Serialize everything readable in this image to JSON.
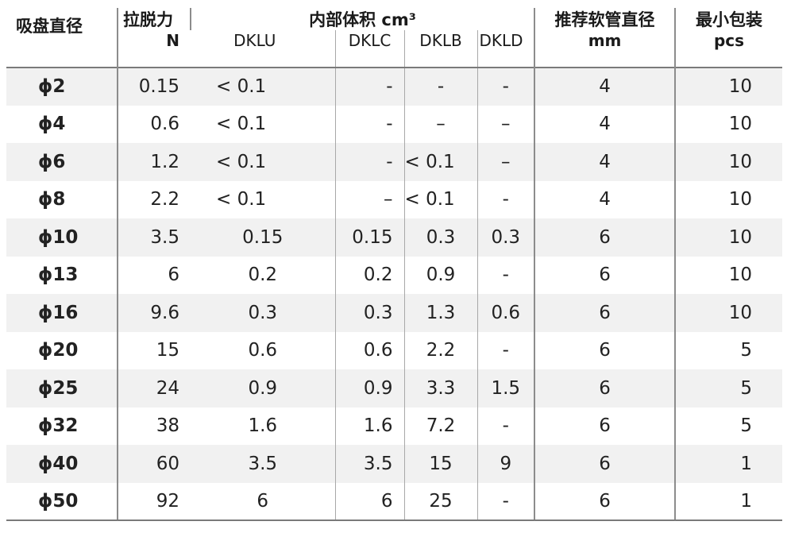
{
  "header": {
    "size": "吸盘直径",
    "force": "拉脱力",
    "force_unit": "N",
    "volume": "内部体积 cm³",
    "dklu": "DKLU",
    "dklc": "DKLC",
    "dklb": "DKLB",
    "dkld": "DKLD",
    "hose": "推荐软管直径",
    "hose_unit": "mm",
    "pack": "最小包装",
    "pack_unit": "pcs"
  },
  "rows": [
    {
      "size": "ϕ2",
      "force": "0.15",
      "dklu": "< 0.1",
      "dklc": "-",
      "dklb": "-",
      "dkld": "-",
      "hose": "4",
      "pack": "10"
    },
    {
      "size": "ϕ4",
      "force": "0.6",
      "dklu": "< 0.1",
      "dklc": "-",
      "dklb": "–",
      "dkld": "–",
      "hose": "4",
      "pack": "10"
    },
    {
      "size": "ϕ6",
      "force": "1.2",
      "dklu": "< 0.1",
      "dklc": "-",
      "dklb": "< 0.1",
      "dkld": "–",
      "hose": "4",
      "pack": "10"
    },
    {
      "size": "ϕ8",
      "force": "2.2",
      "dklu": "< 0.1",
      "dklc": "–",
      "dklb": "< 0.1",
      "dkld": "-",
      "hose": "4",
      "pack": "10"
    },
    {
      "size": "ϕ10",
      "force": "3.5",
      "dklu": "0.15",
      "dklc": "0.15",
      "dklb": "0.3",
      "dkld": "0.3",
      "hose": "6",
      "pack": "10"
    },
    {
      "size": "ϕ13",
      "force": "6",
      "dklu": "0.2",
      "dklc": "0.2",
      "dklb": "0.9",
      "dkld": "-",
      "hose": "6",
      "pack": "10"
    },
    {
      "size": "ϕ16",
      "force": "9.6",
      "dklu": "0.3",
      "dklc": "0.3",
      "dklb": "1.3",
      "dkld": "0.6",
      "hose": "6",
      "pack": "10"
    },
    {
      "size": "ϕ20",
      "force": "15",
      "dklu": "0.6",
      "dklc": "0.6",
      "dklb": "2.2",
      "dkld": "-",
      "hose": "6",
      "pack": "5"
    },
    {
      "size": "ϕ25",
      "force": "24",
      "dklu": "0.9",
      "dklc": "0.9",
      "dklb": "3.3",
      "dkld": "1.5",
      "hose": "6",
      "pack": "5"
    },
    {
      "size": "ϕ32",
      "force": "38",
      "dklu": "1.6",
      "dklc": "1.6",
      "dklb": "7.2",
      "dkld": "-",
      "hose": "6",
      "pack": "5"
    },
    {
      "size": "ϕ40",
      "force": "60",
      "dklu": "3.5",
      "dklc": "3.5",
      "dklb": "15",
      "dkld": "9",
      "hose": "6",
      "pack": "1"
    },
    {
      "size": "ϕ50",
      "force": "92",
      "dklu": "6",
      "dklc": "6",
      "dklb": "25",
      "dkld": "-",
      "hose": "6",
      "pack": "1"
    }
  ]
}
